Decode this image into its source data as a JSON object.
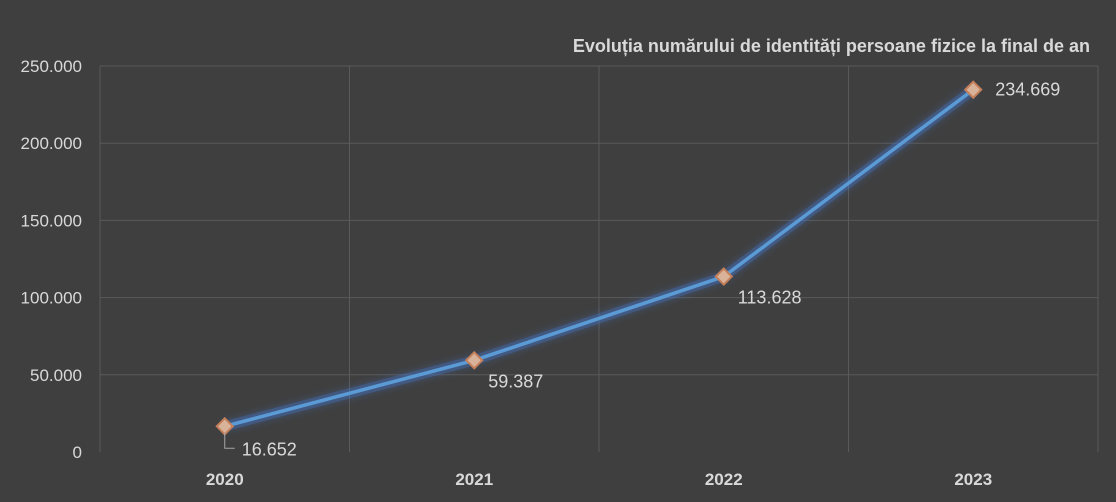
{
  "chart_data": {
    "type": "line",
    "title": "Evoluția numărului de identități persoane fizice la final de an",
    "xlabel": "",
    "ylabel": "",
    "categories": [
      "2020",
      "2021",
      "2022",
      "2023"
    ],
    "series": [
      {
        "values": [
          16652,
          59387,
          113628,
          234669
        ]
      }
    ],
    "data_labels": [
      "16.652",
      "59.387",
      "113.628",
      "234.669"
    ],
    "ylim": [
      0,
      250000
    ],
    "y_ticks": [
      0,
      50000,
      100000,
      150000,
      200000,
      250000
    ],
    "y_tick_labels": [
      "0",
      "50.000",
      "100.000",
      "150.000",
      "200.000",
      "250.000"
    ],
    "grid": true,
    "legend": "none",
    "colors": {
      "background": "#3f3f3f",
      "grid": "#5a5a5a",
      "line": "#5b9bd5",
      "glow": "#4472c4",
      "marker_fill": "#d9b29a",
      "marker_stroke": "#c5805a",
      "text": "#d9d9d9"
    }
  }
}
